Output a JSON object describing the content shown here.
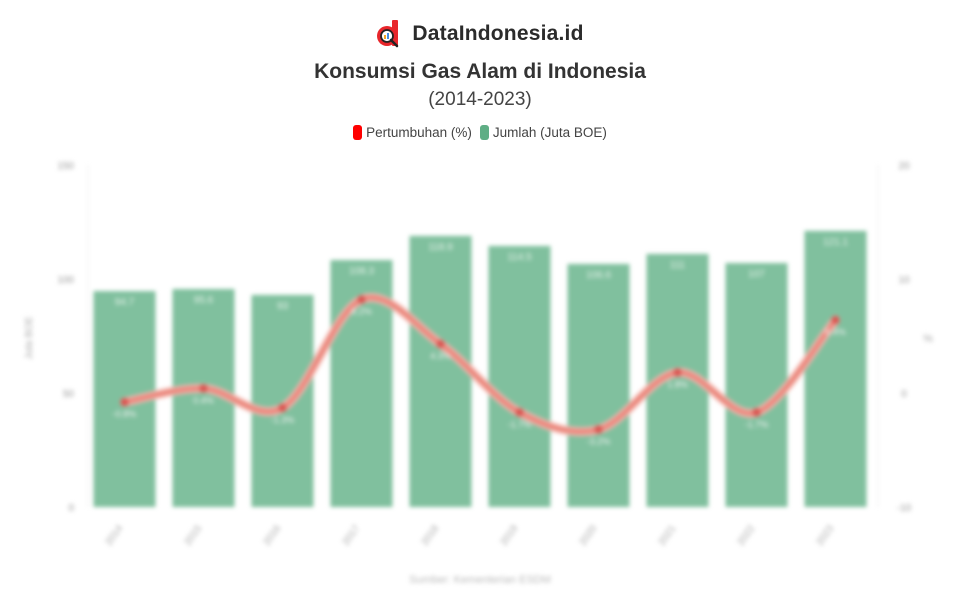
{
  "brand": {
    "name": "DataIndonesia.id",
    "logo_icon": "magnifier-d-logo-icon",
    "logo_color": "#e8262b"
  },
  "header": {
    "title": "Konsumsi Gas Alam di Indonesia",
    "subtitle": "(2014-2023)"
  },
  "legend": [
    {
      "label": "Pertumbuhan (%)",
      "color": "#ff0000"
    },
    {
      "label": "Jumlah (Juta BOE)",
      "color": "#5fae85"
    }
  ],
  "chart_data": {
    "type": "bar",
    "title": "Konsumsi Gas Alam di Indonesia",
    "subtitle": "(2014-2023)",
    "categories": [
      "2014",
      "2015",
      "2016",
      "2017",
      "2018",
      "2019",
      "2020",
      "2021",
      "2022",
      "2023"
    ],
    "series": [
      {
        "name": "Jumlah (Juta BOE)",
        "type": "bar",
        "axis": "left",
        "color": "#80c09e",
        "values": [
          94.7,
          95.6,
          93.0,
          108.3,
          118.9,
          114.5,
          106.6,
          111.0,
          107.0,
          121.1
        ]
      },
      {
        "name": "Pertumbuhan (%)",
        "type": "line",
        "axis": "right",
        "color": "#e8766b",
        "values": [
          -0.8,
          0.4,
          -1.3,
          8.2,
          4.3,
          -1.7,
          -3.2,
          1.8,
          -1.7,
          6.4
        ]
      }
    ],
    "left_axis": {
      "label": "Juta BOE",
      "ticks": [
        0,
        50,
        100,
        150
      ],
      "ylim": [
        0,
        150
      ]
    },
    "right_axis": {
      "label": "%",
      "ticks": [
        -10,
        0,
        10,
        20
      ],
      "ylim": [
        -10,
        20
      ]
    },
    "xlabel": "Sumber: Kementerian ESDM",
    "legend_position": "top",
    "grid": false
  }
}
